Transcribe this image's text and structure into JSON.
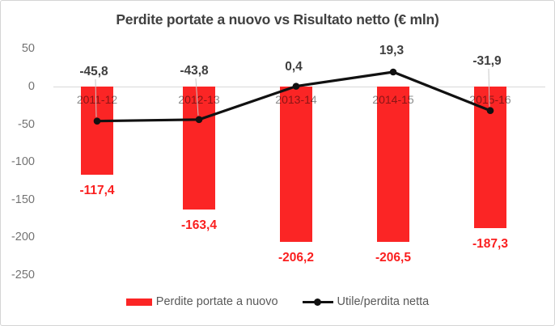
{
  "chart_data": {
    "type": "combo",
    "title": "Perdite portate a nuovo vs Risultato netto (€ mln)",
    "categories": [
      "2011-12",
      "2012-13",
      "2013-14",
      "2014-15",
      "2015-16"
    ],
    "series": [
      {
        "name": "Perdite portate a nuovo",
        "type": "bar",
        "color": "#fb2525",
        "values": [
          -117.4,
          -163.4,
          -206.2,
          -206.5,
          -187.3
        ],
        "labels": [
          "-117,4",
          "-163,4",
          "-206,2",
          "-206,5",
          "-187,3"
        ],
        "label_color": "#fa1f1f"
      },
      {
        "name": "Utile/perdita netta",
        "type": "line",
        "color": "#111111",
        "values": [
          -45.8,
          -43.8,
          0.4,
          19.3,
          -31.9
        ],
        "labels": [
          "-45,8",
          "-43,8",
          "0,4",
          "19,3",
          "-31,9"
        ],
        "label_color": "#3f3f3f",
        "label_y": [
          88,
          87,
          82,
          62,
          75
        ],
        "label_dx": [
          -4,
          -6,
          -3,
          -2,
          -4
        ],
        "leader_indexes": [
          0,
          1,
          4
        ]
      }
    ],
    "y_axis": {
      "ticks": [
        50,
        0,
        -50,
        -100,
        -150,
        -200,
        -250
      ],
      "labels": [
        "50",
        "0",
        "-50",
        "-100",
        "-150",
        "-200",
        "-250"
      ]
    },
    "axis_range": {
      "min": -250,
      "max": 50
    },
    "gridlines": "zero-line-only",
    "legend_position": "bottom",
    "colors": {
      "bar_red": "#fb2525",
      "line_black": "#111111",
      "gridline": "#d9d9d9",
      "axis_text": "#737373",
      "category_text": "#8c8c8c",
      "title_text": "#404040",
      "legend_text": "#595959",
      "leader_line": "#c8c8c8"
    }
  }
}
